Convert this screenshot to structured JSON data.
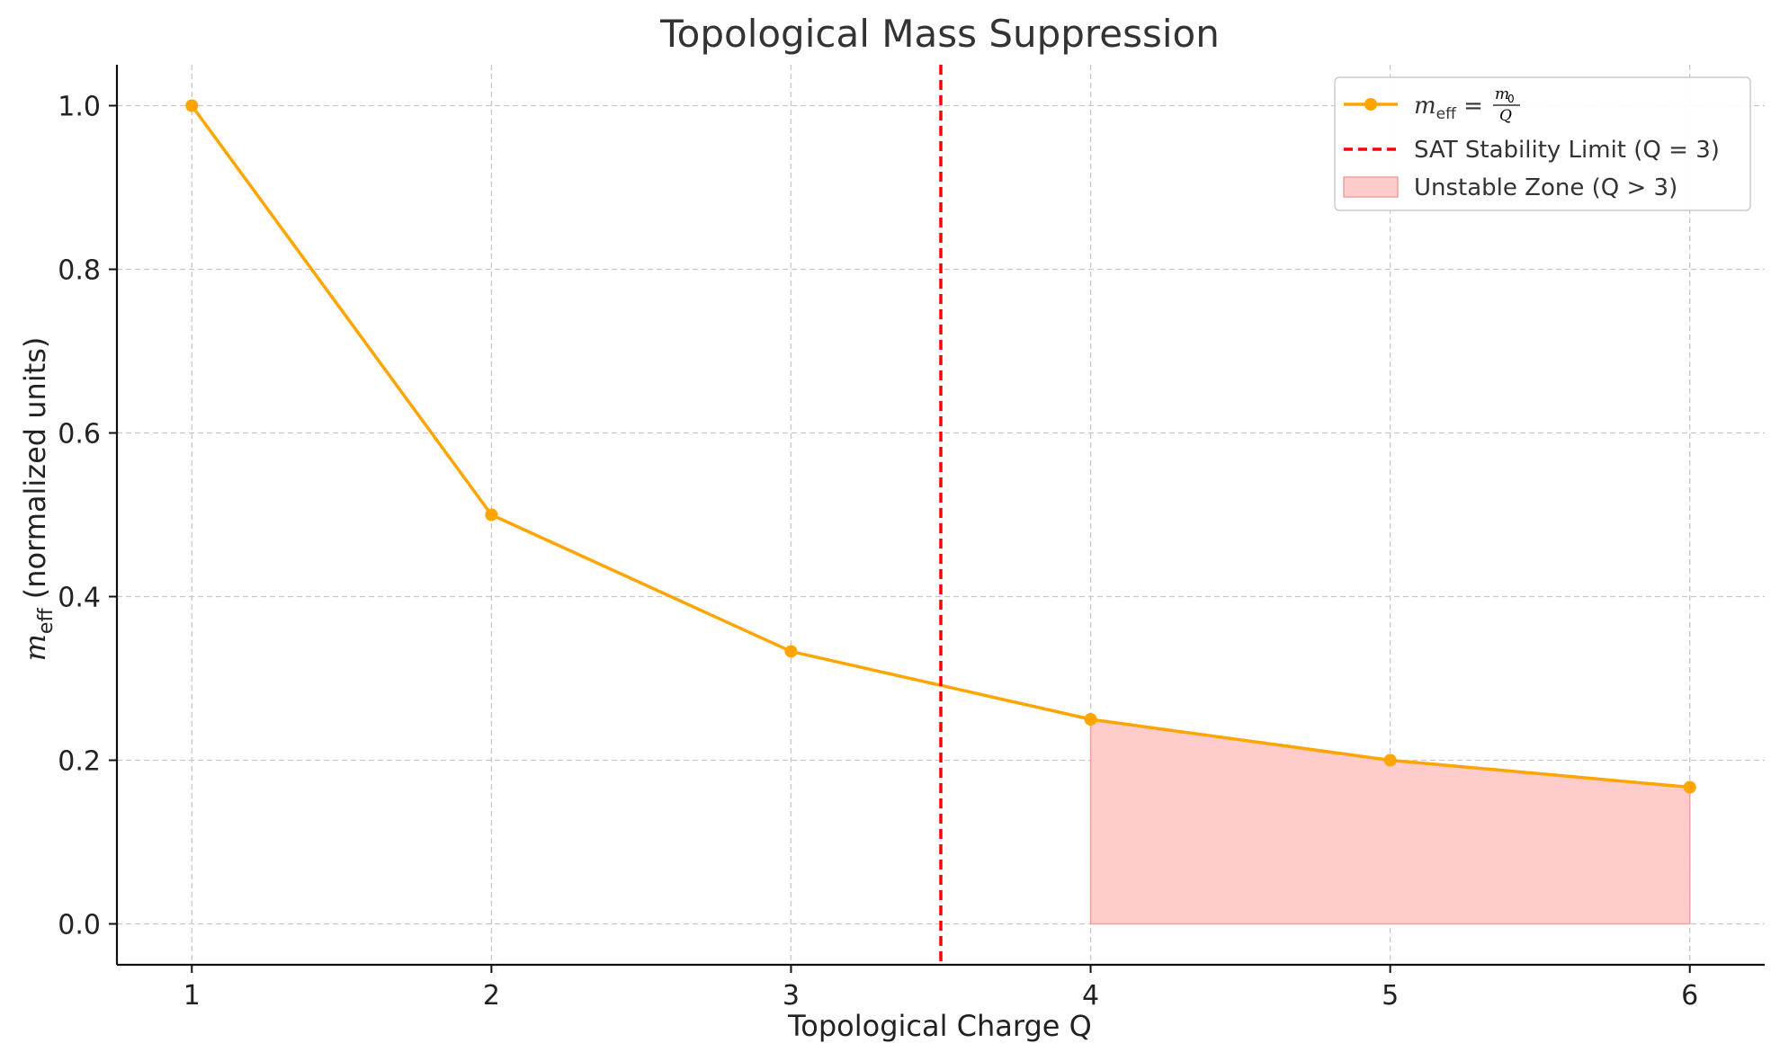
{
  "chart_data": {
    "type": "line",
    "title": "Topological Mass Suppression",
    "xlabel": "Topological Charge Q",
    "ylabel_main": "m",
    "ylabel_sub": "eff",
    "ylabel_rest": " (normalized units)",
    "xlim": [
      0.75,
      6.25
    ],
    "ylim": [
      -0.05,
      1.05
    ],
    "xticks": [
      1,
      2,
      3,
      4,
      5,
      6
    ],
    "yticks": [
      0.0,
      0.2,
      0.4,
      0.6,
      0.8,
      1.0
    ],
    "xtick_labels": [
      "1",
      "2",
      "3",
      "4",
      "5",
      "6"
    ],
    "ytick_labels": [
      "0.0",
      "0.2",
      "0.4",
      "0.6",
      "0.8",
      "1.0"
    ],
    "grid": true,
    "legend_position": "top-right",
    "series": [
      {
        "type": "line-marker",
        "x": [
          1,
          2,
          3,
          4,
          5,
          6
        ],
        "y": [
          1.0,
          0.5,
          0.333,
          0.25,
          0.2,
          0.167
        ],
        "color": "#FFA500",
        "legend": {
          "m": "m",
          "sub": "eff",
          "eq": " = ",
          "num": "m",
          "num_sub": "0",
          "den": "Q"
        }
      }
    ],
    "vline": {
      "x": 3.5,
      "color": "#FF0000",
      "style": "dashed",
      "legend": "SAT Stability Limit (Q = 3)"
    },
    "fill": {
      "x_from": 4,
      "x_to": 6,
      "color": "#FFCCCC",
      "edge_color": "#F4A0A0",
      "legend": "Unstable Zone (Q > 3)"
    }
  }
}
